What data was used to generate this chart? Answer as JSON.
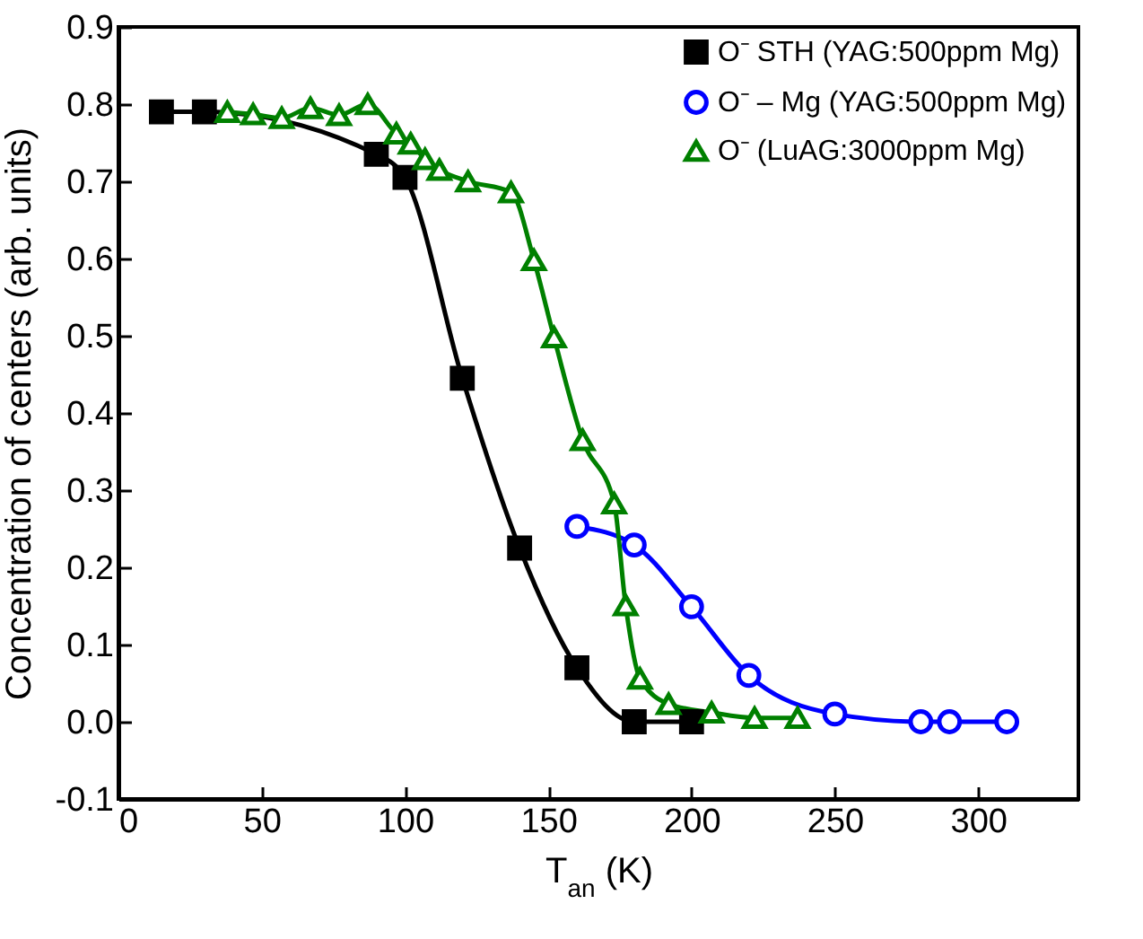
{
  "chart_data": {
    "type": "line",
    "xlabel": "T$_{an}$ (K)",
    "ylabel": "Concentration of centers (arb. units)",
    "xlim": [
      0,
      335
    ],
    "xticks": [
      0,
      50,
      100,
      150,
      200,
      250,
      300
    ],
    "ylim": [
      -0.1,
      0.9
    ],
    "yticks": [
      {
        "value": -0.1,
        "label": "-0.1"
      },
      {
        "value": 0,
        "label": "0.0"
      },
      {
        "value": 0.1,
        "label": "0.1"
      },
      {
        "value": 0.2,
        "label": "0.2"
      },
      {
        "value": 0.3,
        "label": "0.3"
      },
      {
        "value": 0.4,
        "label": "0.4"
      },
      {
        "value": 0.5,
        "label": "0.5"
      },
      {
        "value": 0.6,
        "label": "0.6"
      },
      {
        "value": 0.7,
        "label": "0.7"
      },
      {
        "value": 0.8,
        "label": "0.8"
      },
      {
        "value": 0.9,
        "label": "0.9"
      }
    ],
    "grid": false,
    "legend": "top right",
    "line_style": "solid",
    "series": [
      {
        "name": "O⁻ STH (YAG:500ppm Mg)",
        "color": "#000000",
        "marker": "square",
        "x": [
          15,
          30,
          90,
          100,
          120,
          140,
          160,
          180,
          200
        ],
        "values": [
          0.79,
          0.79,
          0.735,
          0.705,
          0.445,
          0.225,
          0.07,
          0,
          0
        ]
      },
      {
        "name": "O⁻ – Mg (YAG:500ppm Mg)",
        "color": "#0000ff",
        "marker": "circle",
        "x": [
          160,
          180,
          200,
          220,
          250,
          280,
          290,
          310
        ],
        "values": [
          0.253,
          0.229,
          0.149,
          0.06,
          0.01,
          0,
          0,
          0
        ]
      },
      {
        "name": "O⁻ (LuAG:3000ppm Mg)",
        "color": "#008000",
        "marker": "triangle",
        "x": [
          38,
          47,
          57,
          67,
          77,
          87,
          97,
          102,
          107,
          112,
          122,
          137,
          145,
          152,
          162,
          173,
          177,
          182,
          192,
          207,
          222,
          237
        ],
        "values": [
          0.79,
          0.787,
          0.782,
          0.795,
          0.786,
          0.8,
          0.762,
          0.749,
          0.729,
          0.715,
          0.7,
          0.686,
          0.598,
          0.498,
          0.365,
          0.283,
          0.151,
          0.056,
          0.023,
          0.012,
          0.005,
          0.005
        ]
      }
    ]
  }
}
